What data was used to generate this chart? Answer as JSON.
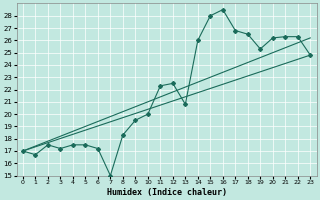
{
  "xlabel": "Humidex (Indice chaleur)",
  "xlim": [
    -0.5,
    23.5
  ],
  "ylim": [
    15,
    29
  ],
  "yticks": [
    15,
    16,
    17,
    18,
    19,
    20,
    21,
    22,
    23,
    24,
    25,
    26,
    27,
    28
  ],
  "xticks": [
    0,
    1,
    2,
    3,
    4,
    5,
    6,
    7,
    8,
    9,
    10,
    11,
    12,
    13,
    14,
    15,
    16,
    17,
    18,
    19,
    20,
    21,
    22,
    23
  ],
  "bg_color": "#c2e8e0",
  "grid_color": "#b0d8ce",
  "line_color": "#1a6b5a",
  "series1_x": [
    0,
    1,
    2,
    3,
    4,
    5,
    6,
    7,
    8,
    9,
    10,
    11,
    12,
    13,
    14,
    15,
    16,
    17,
    18,
    19,
    20,
    21,
    22,
    23
  ],
  "series1_y": [
    17.0,
    16.7,
    17.5,
    17.2,
    17.5,
    17.5,
    17.2,
    15.0,
    18.3,
    19.5,
    20.0,
    22.3,
    22.5,
    20.8,
    26.0,
    28.0,
    28.5,
    26.8,
    26.5,
    25.3,
    26.2,
    26.3,
    26.3,
    24.8
  ],
  "series2_x": [
    0,
    23
  ],
  "series2_y": [
    17.0,
    26.2
  ],
  "series3_x": [
    0,
    23
  ],
  "series3_y": [
    17.0,
    24.8
  ]
}
